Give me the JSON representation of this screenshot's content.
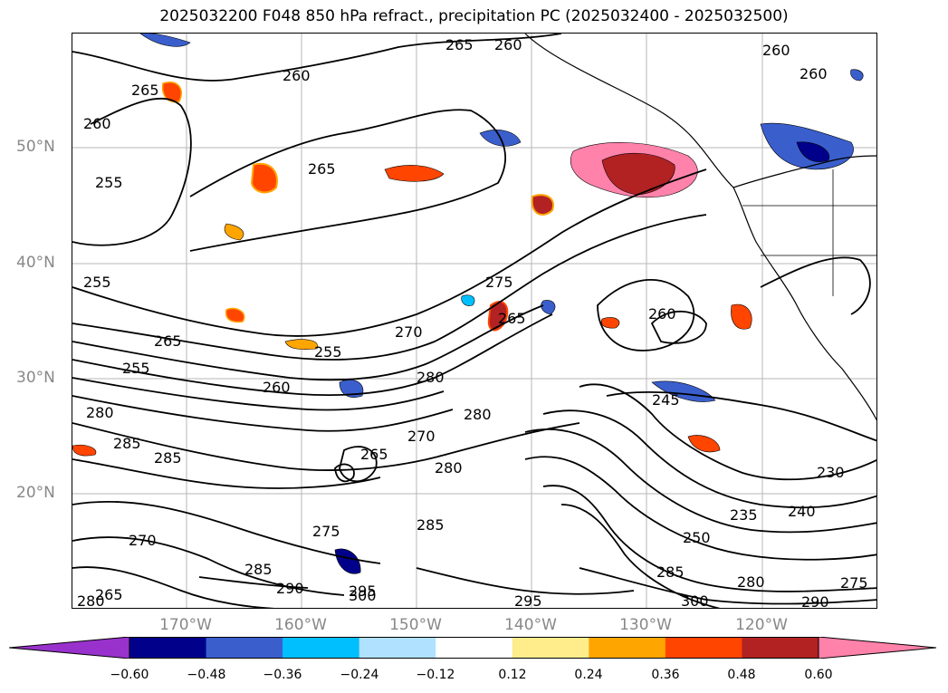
{
  "title": "2025032200 F048 850 hPa refract., precipitation PC (2025032400 - 2025032500)",
  "lat_labels": [
    "50°N",
    "40°N",
    "30°N",
    "20°N"
  ],
  "lon_labels": [
    "170°W",
    "160°W",
    "150°W",
    "140°W",
    "130°W",
    "120°W"
  ],
  "colorbar": {
    "ticks": [
      "−0.60",
      "−0.48",
      "−0.36",
      "−0.24",
      "−0.12",
      "0.12",
      "0.24",
      "0.36",
      "0.48",
      "0.60"
    ],
    "colors": [
      "#9932cc",
      "#00008b",
      "#3a5fcd",
      "#00bfff",
      "#b0e2ff",
      "#ffffff",
      "#ffec8b",
      "#ffa500",
      "#ff4500",
      "#b22222",
      "#ff82ab"
    ]
  },
  "contour_labels": [
    "265",
    "260",
    "260",
    "260",
    "260",
    "265",
    "260",
    "255",
    "255",
    "265",
    "275",
    "265",
    "270",
    "260",
    "265",
    "255",
    "255",
    "260",
    "280",
    "280",
    "285",
    "285",
    "270",
    "280",
    "265",
    "245",
    "230",
    "235",
    "240",
    "250",
    "280",
    "275",
    "285",
    "290",
    "295",
    "300",
    "295",
    "300",
    "285",
    "280",
    "290",
    "275",
    "270",
    "265",
    "285",
    "280"
  ]
}
